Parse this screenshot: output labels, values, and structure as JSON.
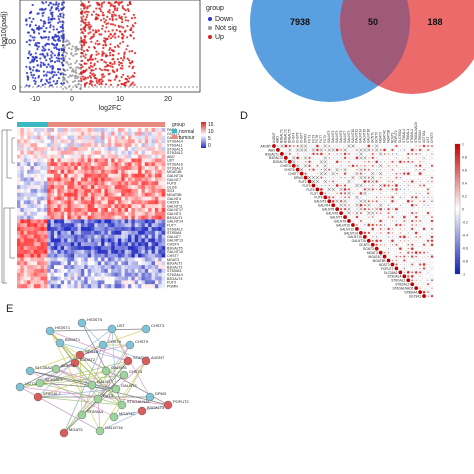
{
  "panels": {
    "C": "C",
    "D": "D",
    "E": "E"
  },
  "volcano": {
    "ylabel": "-log10(padj)",
    "xlabel": "log2FC",
    "yticks": [
      "100",
      "0"
    ],
    "xticks": [
      "-10",
      "0",
      "10",
      "20"
    ],
    "legend_title": "group",
    "legend": [
      {
        "label": "Down",
        "color": "#2b35c8"
      },
      {
        "label": "Not sig",
        "color": "#9a9a9a"
      },
      {
        "label": "Up",
        "color": "#e02020"
      }
    ]
  },
  "venn": {
    "left": "7938",
    "middle": "50",
    "right": "188",
    "left_color": "#5a9fe0",
    "right_color": "#ec6a6a",
    "overlap_color": "#9e5a78"
  },
  "heatmap": {
    "legend_title": "group",
    "groups": [
      {
        "label": "normal",
        "color": "#3bb8c3"
      },
      {
        "label": "tumour",
        "color": "#e88a80"
      }
    ],
    "scale_ticks": [
      "15",
      "10",
      "5",
      "0"
    ],
    "genes": [
      "PAG2",
      "GCNT1",
      "GALNT2",
      "ST3GAL4",
      "ST6GAL1",
      "ST3GAL5",
      "ST6GAL2",
      "ABO",
      "UST",
      "ST3GAL6",
      "ST3GAL3",
      "MGAT4B",
      "GALNT16",
      "GALNT7",
      "FUT8",
      "GLG6",
      "SG3",
      "MGAT5B",
      "GALNT4",
      "CHST6",
      "GALNT11",
      "GALNT17",
      "GALNT3",
      "B3GALT1",
      "GALNT14",
      "FUT7",
      "ST6GAL2",
      "ST8SIA4",
      "GALNT7",
      "GALNT13",
      "CHST4",
      "B3GALT5",
      "GALNT10",
      "CHST7",
      "MGAT3",
      "B3GALT1",
      "B3GALT2",
      "ST6SIA3",
      "ST6GAL4",
      "B3GALT4",
      "FUT3",
      "PGMN"
    ]
  },
  "correlation": {
    "genes": [
      "A4GNT",
      "ABO",
      "B3GALT1",
      "B3GALT2",
      "B3GALT5",
      "CHST4",
      "CHST6",
      "CHST7",
      "DPM3",
      "FUT1",
      "FUT3",
      "FUT6",
      "FUT7",
      "FUT9",
      "GALNT3",
      "GALNT4",
      "GALNT5",
      "GALNT6",
      "GALNT7",
      "GALNT9",
      "GALNT10",
      "GALNT12",
      "GALNT14",
      "GALNT15",
      "GALNT16",
      "GCNT1",
      "GCNT3",
      "MGAT3",
      "MGAT4C",
      "MGAT5B",
      "NDST3",
      "POFUT2",
      "SLC35A2",
      "ST3GAL4",
      "ST6GAL1",
      "ST6GAL2",
      "ST6GALNAC6",
      "ST8SIA4",
      "UGT3A1",
      "UST",
      "CHST9"
    ],
    "scale_ticks": [
      "1",
      "0.8",
      "0.6",
      "0.4",
      "0.2",
      "0",
      "-0.2",
      "-0.4",
      "-0.6",
      "-0.8",
      "-1"
    ]
  },
  "network": {
    "nodes": [
      {
        "label": "HS3ST5",
        "color": "#7fc3d6"
      },
      {
        "label": "UST",
        "color": "#7fc3d6"
      },
      {
        "label": "CHST3",
        "color": "#7fc3d6"
      },
      {
        "label": "HS3ST1",
        "color": "#7fc3d6"
      },
      {
        "label": "CHST6",
        "color": "#7fc3d6"
      },
      {
        "label": "CHST9",
        "color": "#7fc3d6"
      },
      {
        "label": "B3GAT1",
        "color": "#7fc3d6"
      },
      {
        "label": "NDST3",
        "color": "#d95d5d"
      },
      {
        "label": "B3GAT2",
        "color": "#d95d5d"
      },
      {
        "label": "ST8SIA2",
        "color": "#d95d5d"
      },
      {
        "label": "A4GNT",
        "color": "#d95d5d"
      },
      {
        "label": "GCNT3",
        "color": "#9ed39e"
      },
      {
        "label": "GALNT6",
        "color": "#9ed39e"
      },
      {
        "label": "CHST4",
        "color": "#9ed39e"
      },
      {
        "label": "SLC35A2",
        "color": "#7fc3d6"
      },
      {
        "label": "UGT3A1",
        "color": "#7fc3d6"
      },
      {
        "label": "ST3GAL4",
        "color": "#9ed39e"
      },
      {
        "label": "GALNT",
        "color": "#9ed39e"
      },
      {
        "label": "ST6GAL2",
        "color": "#d95d5d"
      },
      {
        "label": "GALNT3",
        "color": "#9ed39e"
      },
      {
        "label": "FUT3",
        "color": "#9ed39e"
      },
      {
        "label": "ST6GALNAC",
        "color": "#9ed39e"
      },
      {
        "label": "B3GALT5",
        "color": "#d95d5d"
      },
      {
        "label": "POFUT2",
        "color": "#d95d5d"
      },
      {
        "label": "MGAT4C",
        "color": "#9ed39e"
      },
      {
        "label": "ST8SIA4",
        "color": "#9ed39e"
      },
      {
        "label": "DPM3",
        "color": "#7fc3d6"
      },
      {
        "label": "GALNT16",
        "color": "#9ed39e"
      },
      {
        "label": "MGAT3",
        "color": "#d95d5d"
      }
    ]
  }
}
